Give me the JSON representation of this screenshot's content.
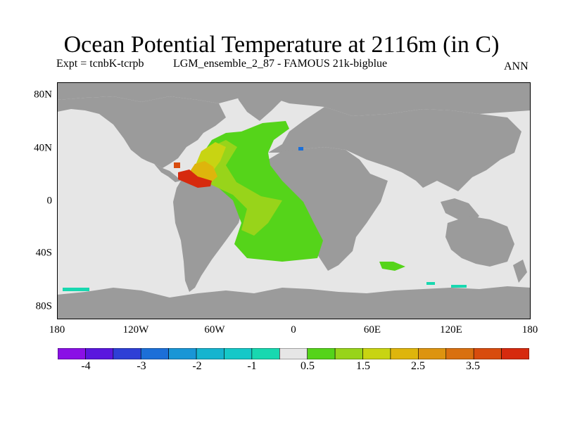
{
  "title": "Ocean Potential Temperature at 2116m (in C)",
  "experiment": "Expt = tcnbK-tcrpb",
  "run_name": "LGM_ensemble_2_87 - FAMOUS 21k-bigblue",
  "period": "ANN",
  "map": {
    "projection": "equirectangular",
    "lat_range": [
      -90,
      90
    ],
    "lon_range": [
      -180,
      180
    ],
    "lat_ticks": [
      "80N",
      "40N",
      "0",
      "40S",
      "80S"
    ],
    "lon_ticks": [
      "180",
      "120W",
      "60W",
      "0",
      "60E",
      "120E",
      "180"
    ],
    "land_color": "#9b9b9b",
    "ocean_background_color": "#e6e6e6"
  },
  "colorbar": {
    "labels": [
      "-4",
      "-3",
      "-2",
      "-1",
      "0.5",
      "1.5",
      "2.5",
      "3.5"
    ],
    "colors": [
      "#8a10e6",
      "#5a17de",
      "#2e3fd6",
      "#1c6fd8",
      "#1996d6",
      "#16b4cf",
      "#15c8c8",
      "#18d8b0",
      "#e6e6e6",
      "#55d41a",
      "#98d41a",
      "#c8d412",
      "#deb50c",
      "#dd9410",
      "#d97010",
      "#d84c0e",
      "#d62a0e"
    ]
  }
}
